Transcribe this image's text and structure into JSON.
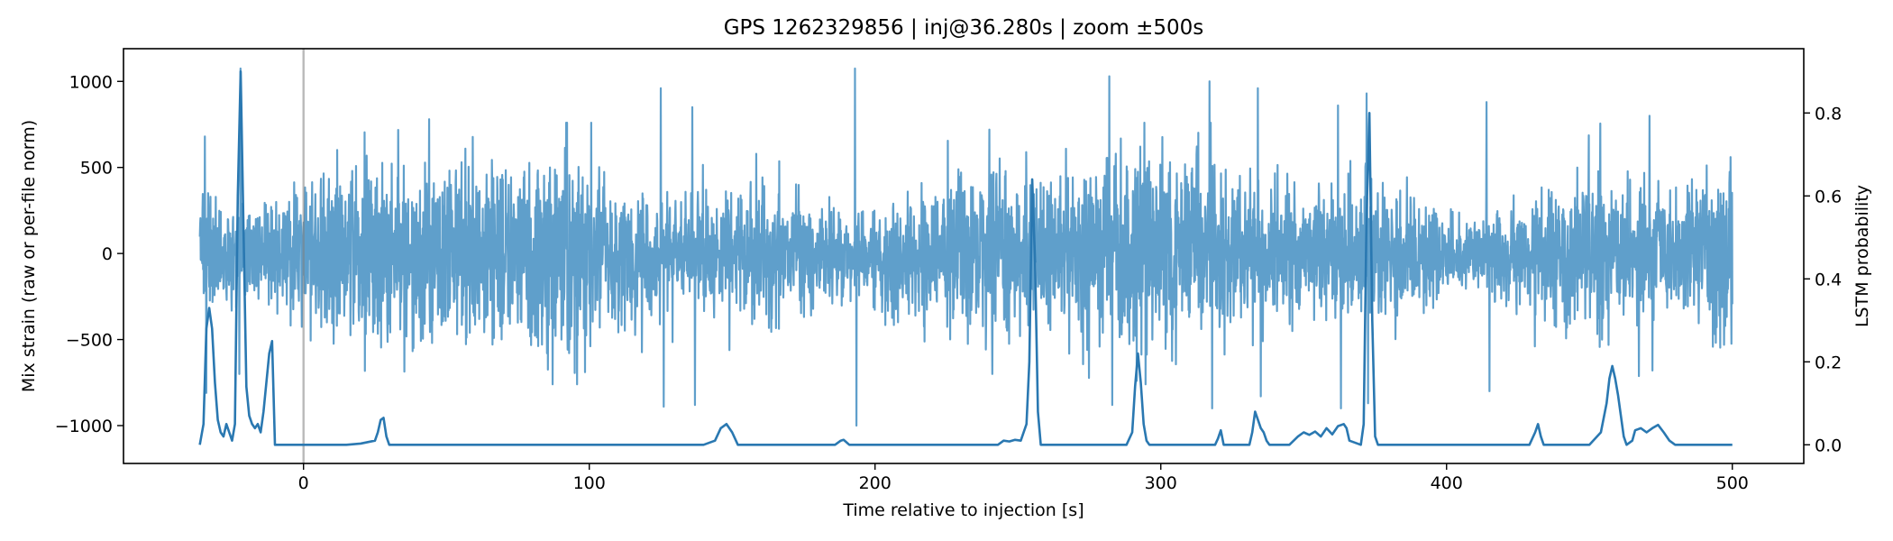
{
  "chart_data": {
    "type": "line",
    "title": "GPS 1262329856 | inj@36.280s | zoom ±500s",
    "xlabel": "Time relative to injection [s]",
    "ylabel": "Mix strain (raw or per-file norm)",
    "y2label": "LSTM probability",
    "xlim": [
      -63,
      525
    ],
    "ylim": [
      -1220,
      1190
    ],
    "y2lim": [
      -0.045,
      0.955
    ],
    "x_ticks": [
      0,
      100,
      200,
      300,
      400,
      500
    ],
    "x_tick_labels": [
      "0",
      "100",
      "200",
      "300",
      "400",
      "500"
    ],
    "y_ticks": [
      -1000,
      -500,
      0,
      500,
      1000
    ],
    "y_tick_labels": [
      "−1000",
      "−500",
      "0",
      "500",
      "1000"
    ],
    "y2_ticks": [
      0.0,
      0.2,
      0.4,
      0.6,
      0.8
    ],
    "y2_tick_labels": [
      "0.0",
      "0.2",
      "0.4",
      "0.6",
      "0.8"
    ],
    "injection_marker_x": 0,
    "grid": false,
    "series": [
      {
        "axis": "left",
        "color": "#5f9fcb",
        "x_range": [
          -36.28,
          500
        ],
        "typical_amplitude": 380,
        "peaks": [
          {
            "x": -34.5,
            "y": 680
          },
          {
            "x": -34,
            "y": -810
          },
          {
            "x": -22,
            "y": 1075
          },
          {
            "x": -22.5,
            "y": -700
          },
          {
            "x": 44,
            "y": 780
          },
          {
            "x": 45,
            "y": -520
          },
          {
            "x": 125,
            "y": 960
          },
          {
            "x": 126,
            "y": -890
          },
          {
            "x": 136,
            "y": 850
          },
          {
            "x": 137,
            "y": -880
          },
          {
            "x": 193,
            "y": 1075
          },
          {
            "x": 193.5,
            "y": -1000
          },
          {
            "x": 240,
            "y": 720
          },
          {
            "x": 241,
            "y": -700
          },
          {
            "x": 282,
            "y": 1030
          },
          {
            "x": 283,
            "y": -880
          },
          {
            "x": 317,
            "y": 1000
          },
          {
            "x": 318,
            "y": -900
          },
          {
            "x": 334,
            "y": 960
          },
          {
            "x": 335,
            "y": -830
          },
          {
            "x": 362,
            "y": 860
          },
          {
            "x": 363,
            "y": -900
          },
          {
            "x": 372,
            "y": 930
          },
          {
            "x": 372.5,
            "y": -870
          },
          {
            "x": 414,
            "y": 880
          },
          {
            "x": 415,
            "y": -800
          },
          {
            "x": 471,
            "y": 800
          },
          {
            "x": 472,
            "y": -680
          }
        ]
      },
      {
        "axis": "right",
        "color": "#2a78b1",
        "baseline": 0.0,
        "points": [
          [
            -36.3,
            0.0
          ],
          [
            -35,
            0.05
          ],
          [
            -34,
            0.28
          ],
          [
            -33,
            0.33
          ],
          [
            -32,
            0.28
          ],
          [
            -31,
            0.15
          ],
          [
            -30,
            0.06
          ],
          [
            -29,
            0.03
          ],
          [
            -28,
            0.02
          ],
          [
            -27,
            0.05
          ],
          [
            -26,
            0.03
          ],
          [
            -25,
            0.01
          ],
          [
            -24,
            0.05
          ],
          [
            -23,
            0.6
          ],
          [
            -22,
            0.9
          ],
          [
            -21,
            0.52
          ],
          [
            -20,
            0.14
          ],
          [
            -19,
            0.07
          ],
          [
            -18,
            0.05
          ],
          [
            -17,
            0.04
          ],
          [
            -16,
            0.05
          ],
          [
            -15,
            0.03
          ],
          [
            -14,
            0.08
          ],
          [
            -13,
            0.15
          ],
          [
            -12,
            0.22
          ],
          [
            -11,
            0.25
          ],
          [
            -10,
            0.0
          ],
          [
            15,
            0.0
          ],
          [
            20,
            0.003
          ],
          [
            25,
            0.01
          ],
          [
            26,
            0.03
          ],
          [
            27,
            0.06
          ],
          [
            28,
            0.065
          ],
          [
            29,
            0.02
          ],
          [
            30,
            0.0
          ],
          [
            140,
            0.0
          ],
          [
            144,
            0.01
          ],
          [
            146,
            0.04
          ],
          [
            148,
            0.05
          ],
          [
            150,
            0.03
          ],
          [
            152,
            0.0
          ],
          [
            186,
            0.0
          ],
          [
            188,
            0.01
          ],
          [
            189,
            0.012
          ],
          [
            191,
            0.0
          ],
          [
            243,
            0.0
          ],
          [
            245,
            0.01
          ],
          [
            247,
            0.008
          ],
          [
            249,
            0.012
          ],
          [
            251,
            0.01
          ],
          [
            253,
            0.05
          ],
          [
            254,
            0.2
          ],
          [
            255,
            0.64
          ],
          [
            256,
            0.44
          ],
          [
            257,
            0.08
          ],
          [
            258,
            0.0
          ],
          [
            288,
            0.0
          ],
          [
            290,
            0.03
          ],
          [
            291,
            0.14
          ],
          [
            292,
            0.22
          ],
          [
            293,
            0.15
          ],
          [
            294,
            0.05
          ],
          [
            295,
            0.01
          ],
          [
            296,
            0.0
          ],
          [
            319,
            0.0
          ],
          [
            320,
            0.015
          ],
          [
            321,
            0.035
          ],
          [
            322,
            0.0
          ],
          [
            331,
            0.0
          ],
          [
            332,
            0.03
          ],
          [
            333,
            0.08
          ],
          [
            334,
            0.06
          ],
          [
            335,
            0.04
          ],
          [
            336,
            0.03
          ],
          [
            337,
            0.01
          ],
          [
            338,
            0.0
          ],
          [
            345,
            0.0
          ],
          [
            348,
            0.02
          ],
          [
            350,
            0.03
          ],
          [
            352,
            0.024
          ],
          [
            354,
            0.032
          ],
          [
            356,
            0.02
          ],
          [
            358,
            0.04
          ],
          [
            360,
            0.025
          ],
          [
            362,
            0.045
          ],
          [
            364,
            0.05
          ],
          [
            365,
            0.04
          ],
          [
            366,
            0.01
          ],
          [
            370,
            0.0
          ],
          [
            371,
            0.05
          ],
          [
            372,
            0.55
          ],
          [
            373,
            0.8
          ],
          [
            374,
            0.3
          ],
          [
            375,
            0.02
          ],
          [
            376,
            0.0
          ],
          [
            429,
            0.0
          ],
          [
            431,
            0.03
          ],
          [
            432,
            0.05
          ],
          [
            433,
            0.02
          ],
          [
            434,
            0.0
          ],
          [
            450,
            0.0
          ],
          [
            454,
            0.03
          ],
          [
            456,
            0.1
          ],
          [
            457,
            0.16
          ],
          [
            458,
            0.19
          ],
          [
            459,
            0.16
          ],
          [
            460,
            0.12
          ],
          [
            461,
            0.07
          ],
          [
            462,
            0.02
          ],
          [
            463,
            0.0
          ],
          [
            465,
            0.01
          ],
          [
            466,
            0.035
          ],
          [
            468,
            0.04
          ],
          [
            470,
            0.03
          ],
          [
            472,
            0.04
          ],
          [
            474,
            0.048
          ],
          [
            476,
            0.03
          ],
          [
            478,
            0.01
          ],
          [
            480,
            0.0
          ],
          [
            500,
            0.0
          ]
        ]
      }
    ]
  }
}
